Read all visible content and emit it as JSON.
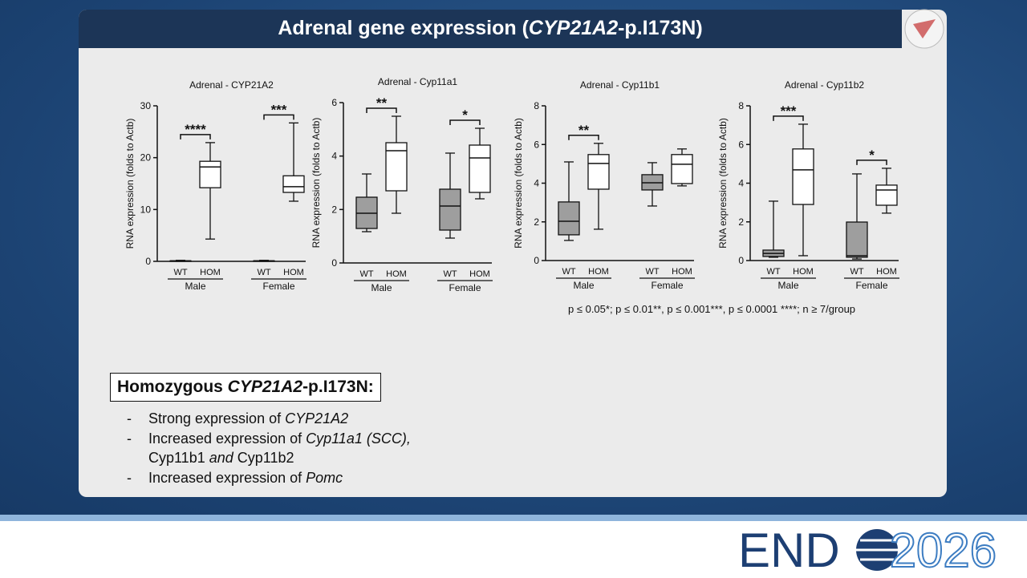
{
  "slide_title": [
    "Adrenal gene expression (",
    "CYP21A2",
    "-p.I173N)"
  ],
  "chart_data": [
    {
      "type": "box",
      "title": "Adrenal - CYP21A2",
      "ylabel": "RNA expression (folds to Actb)",
      "categories": [
        "WT",
        "HOM",
        "WT",
        "HOM"
      ],
      "groups": [
        "Male",
        "Female"
      ],
      "colors": [
        "#9e9e9e",
        "#ffffff",
        "#9e9e9e",
        "#ffffff"
      ],
      "boxes": [
        {
          "min": 0,
          "q1": 0,
          "median": 0.1,
          "q3": 0.1,
          "max": 0.2
        },
        {
          "min": 4.3,
          "q1": 14.2,
          "median": 18.2,
          "q3": 19.3,
          "max": 22.9
        },
        {
          "min": 0,
          "q1": 0,
          "median": 0.1,
          "q3": 0.1,
          "max": 0.2
        },
        {
          "min": 11.6,
          "q1": 13.3,
          "median": 14.4,
          "q3": 16.5,
          "max": 26.7
        }
      ],
      "annotations": [
        "****",
        "***"
      ],
      "ylim": [
        0,
        30
      ],
      "yticks": [
        0,
        10,
        20,
        30
      ]
    },
    {
      "type": "box",
      "title": "Adrenal - Cyp11a1",
      "ylabel": "RNA expression (folds to Actb)",
      "categories": [
        "WT",
        "HOM",
        "WT",
        "HOM"
      ],
      "groups": [
        "Male",
        "Female"
      ],
      "colors": [
        "#9e9e9e",
        "#ffffff",
        "#9e9e9e",
        "#ffffff"
      ],
      "boxes": [
        {
          "min": 1.17,
          "q1": 1.29,
          "median": 1.86,
          "q3": 2.46,
          "max": 3.33
        },
        {
          "min": 1.86,
          "q1": 2.7,
          "median": 4.2,
          "q3": 4.5,
          "max": 5.49
        },
        {
          "min": 0.93,
          "q1": 1.23,
          "median": 2.13,
          "q3": 2.76,
          "max": 4.11
        },
        {
          "min": 2.4,
          "q1": 2.64,
          "median": 3.93,
          "q3": 4.41,
          "max": 5.04
        }
      ],
      "annotations": [
        "**",
        "*"
      ],
      "ylim": [
        0,
        6
      ],
      "yticks": [
        0,
        2,
        4,
        6
      ]
    },
    {
      "type": "box",
      "title": "Adrenal - Cyp11b1",
      "ylabel": "RNA expression (folds to Actb)",
      "categories": [
        "WT",
        "HOM",
        "WT",
        "HOM"
      ],
      "groups": [
        "Male",
        "Female"
      ],
      "colors": [
        "#9e9e9e",
        "#ffffff",
        "#9e9e9e",
        "#ffffff"
      ],
      "boxes": [
        {
          "min": 1.04,
          "q1": 1.33,
          "median": 2.03,
          "q3": 3.03,
          "max": 5.1
        },
        {
          "min": 1.62,
          "q1": 3.69,
          "median": 5.02,
          "q3": 5.48,
          "max": 6.06
        },
        {
          "min": 2.82,
          "q1": 3.65,
          "median": 4.02,
          "q3": 4.44,
          "max": 5.06
        },
        {
          "min": 3.86,
          "q1": 3.98,
          "median": 4.98,
          "q3": 5.48,
          "max": 5.77
        }
      ],
      "annotations": [
        "**"
      ],
      "ylim": [
        0,
        8
      ],
      "yticks": [
        0,
        2,
        4,
        6,
        8
      ]
    },
    {
      "type": "box",
      "title": "Adrenal - Cyp11b2",
      "ylabel": "RNA expression (folds to Actb)",
      "categories": [
        "WT",
        "HOM",
        "WT",
        "HOM"
      ],
      "groups": [
        "Male",
        "Female"
      ],
      "colors": [
        "#9e9e9e",
        "#ffffff",
        "#9e9e9e",
        "#ffffff"
      ],
      "boxes": [
        {
          "min": 0.17,
          "q1": 0.21,
          "median": 0.37,
          "q3": 0.54,
          "max": 3.07
        },
        {
          "min": 0.25,
          "q1": 2.9,
          "median": 4.69,
          "q3": 5.77,
          "max": 7.05
        },
        {
          "min": 0.08,
          "q1": 0.17,
          "median": 0.25,
          "q3": 1.99,
          "max": 4.48
        },
        {
          "min": 2.45,
          "q1": 2.86,
          "median": 3.65,
          "q3": 3.9,
          "max": 4.77
        }
      ],
      "annotations": [
        "***",
        "*"
      ],
      "ylim": [
        0,
        8
      ],
      "yticks": [
        0,
        2,
        4,
        6,
        8
      ]
    }
  ],
  "footnote": "p ≤ 0.05*; p ≤ 0.01**, p ≤ 0.001***, p ≤ 0.0001 ****; n ≥ 7/group",
  "summary": {
    "heading": [
      "Homozygous ",
      "CYP21A2",
      "-p.I173N:"
    ],
    "bullets": [
      [
        "Strong expression of ",
        "CYP21A2"
      ],
      [
        "Increased expression of ",
        "Cyp11a1 (SCC),",
        " Cyp11b1",
        " and ",
        "Cyp11b2"
      ],
      [
        "Increased expression of ",
        "Pomc"
      ]
    ]
  },
  "logo": [
    "END",
    "2026"
  ]
}
